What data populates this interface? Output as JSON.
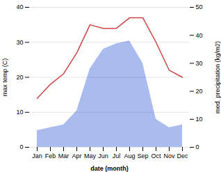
{
  "chart_data": {
    "type": "line",
    "xlabel": "date (month)",
    "ylabel": "max temp (C)",
    "y2label": "med. precipitation (kg/m2)",
    "categories": [
      "Jan",
      "Feb",
      "Mar",
      "Apr",
      "May",
      "Jun",
      "Jul",
      "Aug",
      "Sep",
      "Oct",
      "Nov",
      "Dec"
    ],
    "series": [
      {
        "type": "area",
        "axis": "y2",
        "color": "#aabbee",
        "values": [
          6,
          7,
          8,
          13,
          28,
          35,
          37,
          38,
          30,
          10,
          7,
          8
        ]
      },
      {
        "type": "line",
        "color": "#cc4444",
        "values": [
          14,
          18,
          21,
          27,
          35,
          34,
          34,
          37,
          37,
          30,
          22,
          20
        ]
      }
    ],
    "ylim": [
      0,
      40
    ],
    "yticks": [
      0,
      10,
      20,
      30,
      40
    ],
    "y2lim": [
      0,
      50
    ],
    "y2ticks": [
      0,
      10,
      20,
      30,
      40,
      50
    ],
    "grid": true
  }
}
